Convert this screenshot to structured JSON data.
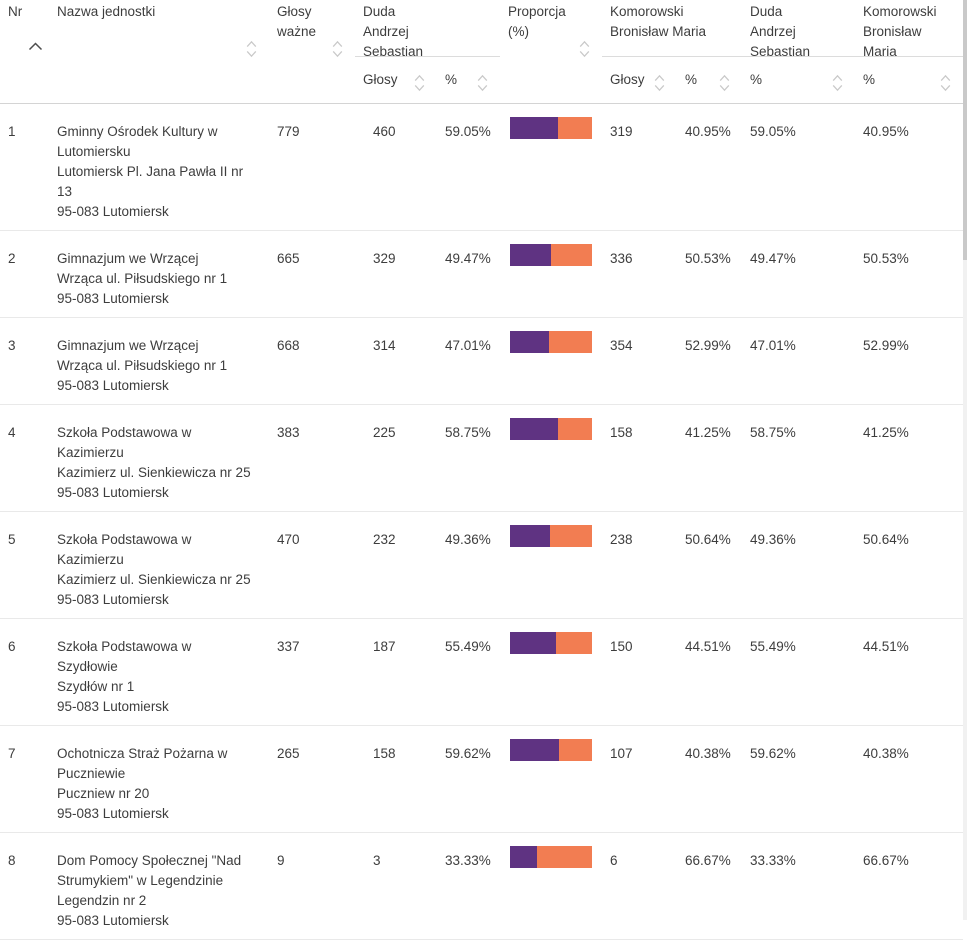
{
  "colors": {
    "duda_bar": "#5f3382",
    "komorowski_bar": "#f27d52"
  },
  "table": {
    "header": {
      "nr": "Nr",
      "unit": "Nazwa jednostki",
      "valid_votes": "Głosy\nważne",
      "duda_votes_group": "Duda\nAndrzej\nSebastian",
      "proportion": "Proporcja\n(%)",
      "komorowski_votes_group": "Komorowski\nBronisław Maria",
      "duda_pct_group": "Duda\nAndrzej\nSebastian",
      "komorowski_pct_group": "Komorowski\nBronisław\nMaria",
      "sub_votes": "Głosy",
      "sub_pct": "%"
    },
    "rows": [
      {
        "nr": "1",
        "name": "Gminny Ośrodek Kultury w\nLutomiersku",
        "address": "Lutomiersk Pl. Jana Pawła II nr\n13",
        "postal": "95-083 Lutomiersk",
        "valid": "779",
        "duda_votes": "460",
        "duda_pct": "59.05%",
        "kom_votes": "319",
        "kom_pct": "40.95%",
        "duda_pct_repeat": "59.05%",
        "kom_pct_repeat": "40.95%",
        "duda_share": 59.05
      },
      {
        "nr": "2",
        "name": "Gimnazjum we Wrzącej",
        "address": "Wrząca ul. Piłsudskiego nr 1",
        "postal": "95-083 Lutomiersk",
        "valid": "665",
        "duda_votes": "329",
        "duda_pct": "49.47%",
        "kom_votes": "336",
        "kom_pct": "50.53%",
        "duda_pct_repeat": "49.47%",
        "kom_pct_repeat": "50.53%",
        "duda_share": 49.47
      },
      {
        "nr": "3",
        "name": "Gimnazjum we Wrzącej",
        "address": "Wrząca ul. Piłsudskiego nr 1",
        "postal": "95-083 Lutomiersk",
        "valid": "668",
        "duda_votes": "314",
        "duda_pct": "47.01%",
        "kom_votes": "354",
        "kom_pct": "52.99%",
        "duda_pct_repeat": "47.01%",
        "kom_pct_repeat": "52.99%",
        "duda_share": 47.01
      },
      {
        "nr": "4",
        "name": "Szkoła Podstawowa w\nKazimierzu",
        "address": "Kazimierz ul. Sienkiewicza nr 25",
        "postal": "95-083 Lutomiersk",
        "valid": "383",
        "duda_votes": "225",
        "duda_pct": "58.75%",
        "kom_votes": "158",
        "kom_pct": "41.25%",
        "duda_pct_repeat": "58.75%",
        "kom_pct_repeat": "41.25%",
        "duda_share": 58.75
      },
      {
        "nr": "5",
        "name": "Szkoła Podstawowa w\nKazimierzu",
        "address": "Kazimierz ul. Sienkiewicza nr 25",
        "postal": "95-083 Lutomiersk",
        "valid": "470",
        "duda_votes": "232",
        "duda_pct": "49.36%",
        "kom_votes": "238",
        "kom_pct": "50.64%",
        "duda_pct_repeat": "49.36%",
        "kom_pct_repeat": "50.64%",
        "duda_share": 49.36
      },
      {
        "nr": "6",
        "name": "Szkoła Podstawowa w\nSzydłowie",
        "address": "Szydłów nr 1",
        "postal": "95-083 Lutomiersk",
        "valid": "337",
        "duda_votes": "187",
        "duda_pct": "55.49%",
        "kom_votes": "150",
        "kom_pct": "44.51%",
        "duda_pct_repeat": "55.49%",
        "kom_pct_repeat": "44.51%",
        "duda_share": 55.49
      },
      {
        "nr": "7",
        "name": "Ochotnicza Straż Pożarna w\nPuczniewie",
        "address": "Puczniew nr 20",
        "postal": "95-083 Lutomiersk",
        "valid": "265",
        "duda_votes": "158",
        "duda_pct": "59.62%",
        "kom_votes": "107",
        "kom_pct": "40.38%",
        "duda_pct_repeat": "59.62%",
        "kom_pct_repeat": "40.38%",
        "duda_share": 59.62
      },
      {
        "nr": "8",
        "name": "Dom Pomocy Społecznej \"Nad\nStrumykiem\" w Legendzinie",
        "address": "Legendzin nr 2",
        "postal": "95-083 Lutomiersk",
        "valid": "9",
        "duda_votes": "3",
        "duda_pct": "33.33%",
        "kom_votes": "6",
        "kom_pct": "66.67%",
        "duda_pct_repeat": "33.33%",
        "kom_pct_repeat": "66.67%",
        "duda_share": 33.33
      }
    ]
  }
}
